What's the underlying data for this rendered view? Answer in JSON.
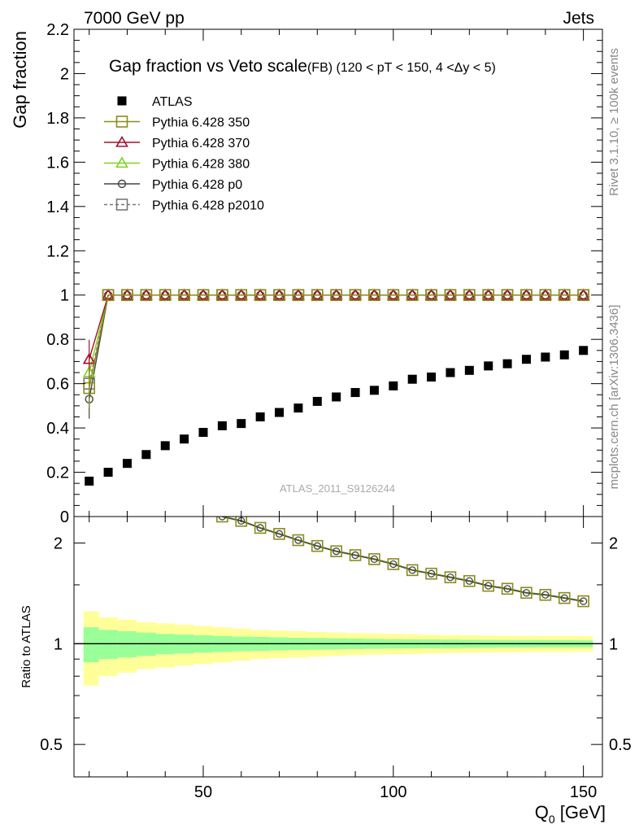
{
  "header": {
    "left": "7000 GeV pp",
    "right": "Jets"
  },
  "side_labels": {
    "rivet": "Rivet 3.1.10, ≥ 100k events",
    "mcplots": "mcplots.cern.ch [arXiv:1306.3436]"
  },
  "analysis_id": "ATLAS_2011_S9126244",
  "colors": {
    "atlas": "#000000",
    "p350": "#8b8b1a",
    "p370": "#a50f2a",
    "p380": "#7fd21e",
    "p0": "#444444",
    "p2010": "#777777",
    "band_inner": "#99ff99",
    "band_outer": "#ffff99",
    "ratio_line": "#4a5d23"
  },
  "chart_data": [
    {
      "type": "scatter",
      "title_main": "Gap fraction vs Veto scale",
      "title_sub": "(FB) (120 < pT < 150, 4 <Δy < 5)",
      "ylabel": "Gap fraction",
      "xlim": [
        16,
        155
      ],
      "ylim": [
        0,
        2.2
      ],
      "yticks": [
        0,
        0.2,
        0.4,
        0.6,
        0.8,
        1,
        1.2,
        1.4,
        1.6,
        1.8,
        2,
        2.2
      ],
      "ytick_labels": [
        "0",
        "0.2",
        "0.4",
        "0.6",
        "0.8",
        "1",
        "1.2",
        "1.4",
        "1.6",
        "1.8",
        "2",
        "2.2"
      ],
      "legend_position": "top-left",
      "x": [
        20,
        25,
        30,
        35,
        40,
        45,
        50,
        55,
        60,
        65,
        70,
        75,
        80,
        85,
        90,
        95,
        100,
        105,
        110,
        115,
        120,
        125,
        130,
        135,
        140,
        145,
        150
      ],
      "series": [
        {
          "name": "ATLAS",
          "key": "atlas",
          "values": [
            0.16,
            0.2,
            0.24,
            0.28,
            0.32,
            0.35,
            0.38,
            0.41,
            0.42,
            0.45,
            0.47,
            0.49,
            0.52,
            0.54,
            0.56,
            0.57,
            0.59,
            0.62,
            0.63,
            0.65,
            0.66,
            0.68,
            0.69,
            0.71,
            0.72,
            0.73,
            0.75
          ]
        },
        {
          "name": "Pythia 6.428 350",
          "key": "p350",
          "values": [
            0.58,
            1,
            1,
            1,
            1,
            1,
            1,
            1,
            1,
            1,
            1,
            1,
            1,
            1,
            1,
            1,
            1,
            1,
            1,
            1,
            1,
            1,
            1,
            1,
            1,
            1,
            1
          ]
        },
        {
          "name": "Pythia 6.428 370",
          "key": "p370",
          "values": [
            0.71,
            1,
            1,
            1,
            1,
            1,
            1,
            1,
            1,
            1,
            1,
            1,
            1,
            1,
            1,
            1,
            1,
            1,
            1,
            1,
            1,
            1,
            1,
            1,
            1,
            1,
            1
          ]
        },
        {
          "name": "Pythia 6.428 380",
          "key": "p380",
          "values": [
            0.65,
            1,
            1,
            1,
            1,
            1,
            1,
            1,
            1,
            1,
            1,
            1,
            1,
            1,
            1,
            1,
            1,
            1,
            1,
            1,
            1,
            1,
            1,
            1,
            1,
            1,
            1
          ]
        },
        {
          "name": "Pythia 6.428 p0",
          "key": "p0",
          "values": [
            0.53,
            1,
            1,
            1,
            1,
            1,
            1,
            1,
            1,
            1,
            1,
            1,
            1,
            1,
            1,
            1,
            1,
            1,
            1,
            1,
            1,
            1,
            1,
            1,
            1,
            1,
            1
          ]
        },
        {
          "name": "Pythia 6.428 p2010",
          "key": "p2010",
          "values": [
            0.6,
            1,
            1,
            1,
            1,
            1,
            1,
            1,
            1,
            1,
            1,
            1,
            1,
            1,
            1,
            1,
            1,
            1,
            1,
            1,
            1,
            1,
            1,
            1,
            1,
            1,
            1
          ]
        }
      ]
    },
    {
      "type": "line",
      "ylabel": "Ratio to ATLAS",
      "xlabel": "Q0 [GeV]",
      "xlabel_main": "Q",
      "xlabel_sub": "0",
      "xlabel_unit": " [GeV]",
      "log_y": true,
      "xlim": [
        16,
        155
      ],
      "ylim": [
        0.4,
        2.4
      ],
      "xticks": [
        50,
        100,
        150
      ],
      "xtick_labels": [
        "50",
        "100",
        "150"
      ],
      "yticks": [
        0.5,
        1,
        2
      ],
      "ytick_labels": [
        "0.5",
        "1",
        "2"
      ],
      "x": [
        55,
        60,
        65,
        70,
        75,
        80,
        85,
        90,
        95,
        100,
        105,
        110,
        115,
        120,
        125,
        130,
        135,
        140,
        145,
        150
      ],
      "ratio_values": [
        2.4,
        2.33,
        2.22,
        2.13,
        2.04,
        1.96,
        1.89,
        1.84,
        1.79,
        1.73,
        1.66,
        1.62,
        1.58,
        1.54,
        1.49,
        1.46,
        1.42,
        1.4,
        1.37,
        1.34
      ],
      "band_x_edges": [
        18.5,
        22.5,
        27.5,
        32.5,
        37.5,
        42.5,
        47.5,
        52.5,
        57.5,
        62.5,
        67.5,
        72.5,
        77.5,
        82.5,
        87.5,
        92.5,
        97.5,
        102.5,
        107.5,
        112.5,
        117.5,
        122.5,
        127.5,
        132.5,
        137.5,
        142.5,
        147.5,
        152.5
      ],
      "band_inner": [
        0.12,
        0.1,
        0.09,
        0.08,
        0.07,
        0.065,
        0.06,
        0.055,
        0.05,
        0.048,
        0.045,
        0.042,
        0.04,
        0.038,
        0.036,
        0.034,
        0.032,
        0.031,
        0.03,
        0.029,
        0.028,
        0.027,
        0.026,
        0.026,
        0.025,
        0.025,
        0.024
      ],
      "band_outer": [
        0.25,
        0.2,
        0.18,
        0.16,
        0.15,
        0.14,
        0.13,
        0.12,
        0.11,
        0.1,
        0.095,
        0.09,
        0.085,
        0.08,
        0.075,
        0.072,
        0.07,
        0.068,
        0.065,
        0.062,
        0.06,
        0.058,
        0.057,
        0.056,
        0.055,
        0.055,
        0.054
      ]
    }
  ]
}
